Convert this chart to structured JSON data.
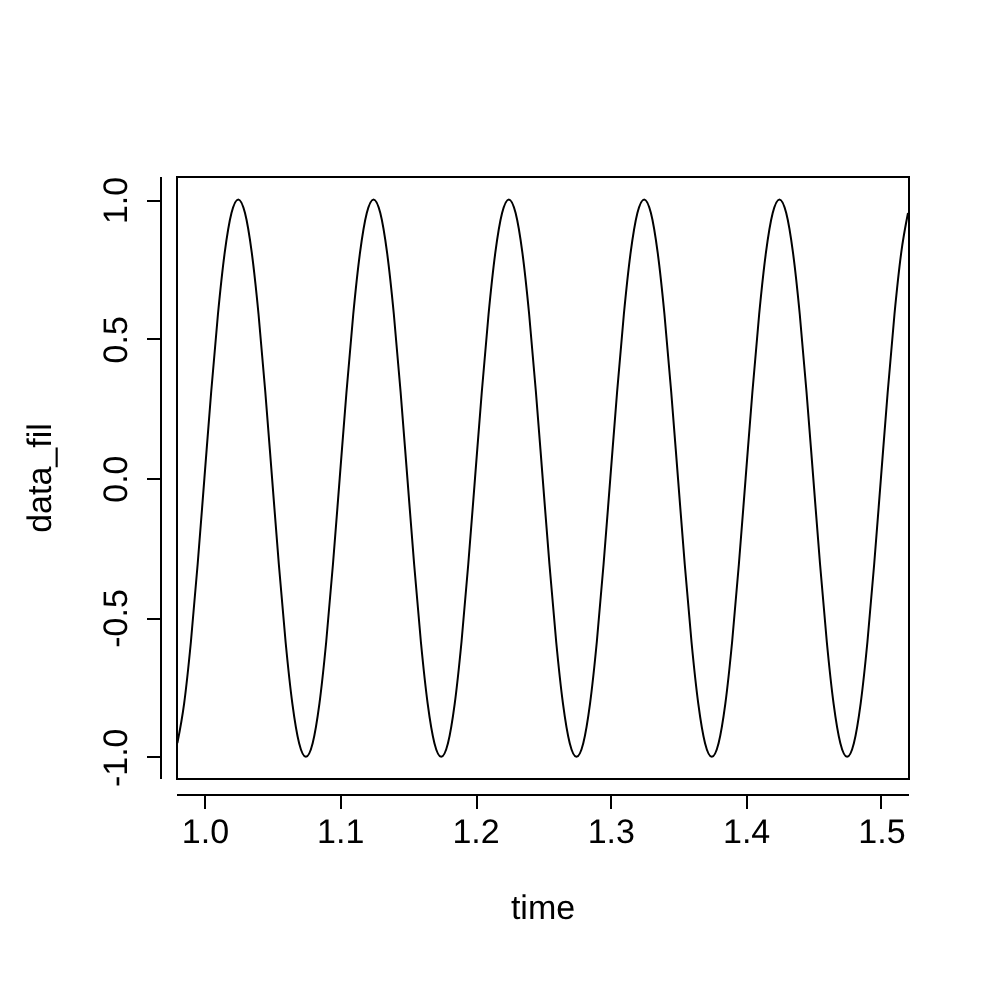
{
  "chart_data": {
    "type": "line",
    "xlabel": "time",
    "ylabel": "data_fil",
    "x": [
      0.98,
      0.985,
      0.99,
      0.995,
      1.0,
      1.005,
      1.01,
      1.015,
      1.02,
      1.025,
      1.03,
      1.035,
      1.04,
      1.045,
      1.05,
      1.055,
      1.06,
      1.065,
      1.07,
      1.075,
      1.08,
      1.085,
      1.09,
      1.095,
      1.1,
      1.105,
      1.11,
      1.115,
      1.12,
      1.125,
      1.13,
      1.135,
      1.14,
      1.145,
      1.15,
      1.155,
      1.16,
      1.165,
      1.17,
      1.175,
      1.18,
      1.185,
      1.19,
      1.195,
      1.2,
      1.205,
      1.21,
      1.215,
      1.22,
      1.225,
      1.23,
      1.235,
      1.24,
      1.245,
      1.25,
      1.255,
      1.26,
      1.265,
      1.27,
      1.275,
      1.28,
      1.285,
      1.29,
      1.295,
      1.3,
      1.305,
      1.31,
      1.315,
      1.32,
      1.325,
      1.33,
      1.335,
      1.34,
      1.345,
      1.35,
      1.355,
      1.36,
      1.365,
      1.37,
      1.375,
      1.38,
      1.385,
      1.39,
      1.395,
      1.4,
      1.405,
      1.41,
      1.415,
      1.42,
      1.425,
      1.43,
      1.435,
      1.44,
      1.445,
      1.45,
      1.455,
      1.46,
      1.465,
      1.47,
      1.475,
      1.48,
      1.485,
      1.49,
      1.495,
      1.5,
      1.505,
      1.51,
      1.515,
      1.52
    ],
    "series": [
      {
        "color": "#000000",
        "values": [
          -0.951,
          -0.809,
          -0.588,
          -0.309,
          0,
          0.309,
          0.588,
          0.809,
          0.951,
          1,
          0.951,
          0.809,
          0.588,
          0.309,
          0,
          -0.309,
          -0.588,
          -0.809,
          -0.951,
          -1,
          -0.951,
          -0.809,
          -0.588,
          -0.309,
          0,
          0.309,
          0.588,
          0.809,
          0.951,
          1,
          0.951,
          0.809,
          0.588,
          0.309,
          0,
          -0.309,
          -0.588,
          -0.809,
          -0.951,
          -1,
          -0.951,
          -0.809,
          -0.588,
          -0.309,
          0,
          0.309,
          0.588,
          0.809,
          0.951,
          1,
          0.951,
          0.809,
          0.588,
          0.309,
          0,
          -0.309,
          -0.588,
          -0.809,
          -0.951,
          -1,
          -0.951,
          -0.809,
          -0.588,
          -0.309,
          0,
          0.309,
          0.588,
          0.809,
          0.951,
          1,
          0.951,
          0.809,
          0.588,
          0.309,
          0,
          -0.309,
          -0.588,
          -0.809,
          -0.951,
          -1,
          -0.951,
          -0.809,
          -0.588,
          -0.309,
          0,
          0.309,
          0.588,
          0.809,
          0.951,
          1,
          0.951,
          0.809,
          0.588,
          0.309,
          0,
          -0.309,
          -0.588,
          -0.809,
          -0.951,
          -1,
          -0.951,
          -0.809,
          -0.588,
          -0.309,
          0,
          0.309,
          0.588,
          0.809,
          0.951
        ]
      }
    ],
    "xlim": [
      0.979,
      1.52
    ],
    "xticks": [
      {
        "value": 1.0,
        "label": "1.0"
      },
      1.1,
      1.2,
      1.3,
      1.4,
      {
        "value": 1.5,
        "label": "1.5"
      }
    ],
    "ylim": [
      -1.076,
      1.084
    ],
    "yticks": [
      {
        "value": -1.0,
        "label": "-1.0"
      },
      {
        "value": -0.5,
        "label": "-0.5"
      },
      {
        "value": 0.0,
        "label": "0.0"
      },
      0.5,
      {
        "value": 1.0,
        "label": "1.0"
      }
    ],
    "grid": false,
    "legend": false,
    "marker": "none",
    "line_style": "solid"
  }
}
